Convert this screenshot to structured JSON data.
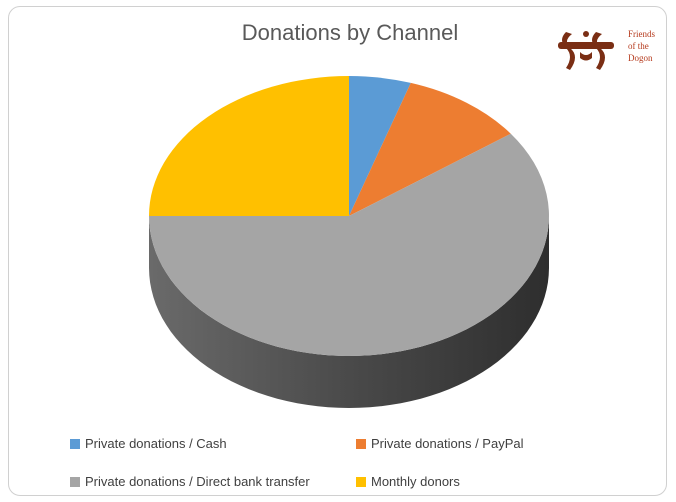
{
  "chart_data": {
    "type": "pie",
    "title": "Donations by Channel",
    "categories": [
      "Private donations / Cash",
      "Private donations / PayPal",
      "Private donations / Direct bank transfer",
      "Monthly donors"
    ],
    "values": [
      5,
      10,
      60,
      25
    ],
    "colors": [
      "#5b9bd5",
      "#ed7d31",
      "#a5a5a5",
      "#ffc000"
    ],
    "style": "3d",
    "legend_position": "bottom"
  },
  "logo": {
    "lines": [
      "Friends",
      "of the",
      "Dogon"
    ]
  }
}
